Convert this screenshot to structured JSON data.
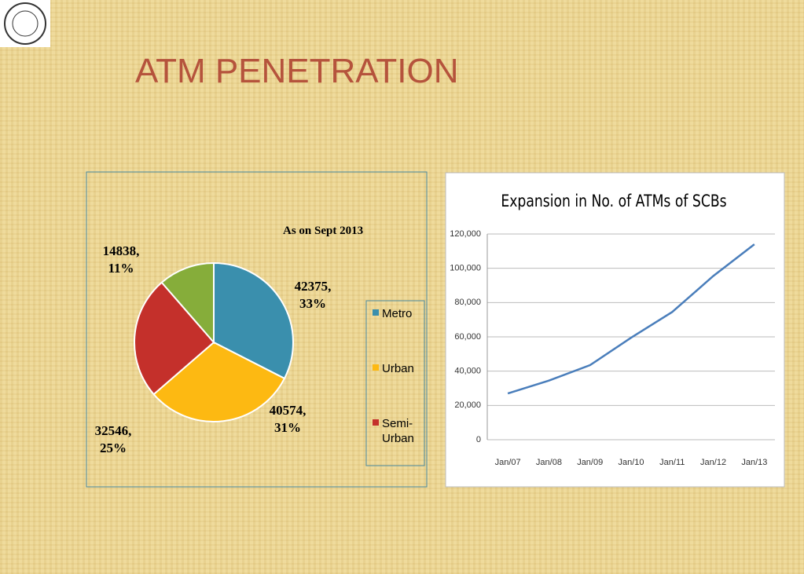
{
  "slide_title": "ATM PENETRATION",
  "chart_data": [
    {
      "type": "pie",
      "subtitle": "As on Sept 2013",
      "categories": [
        "Metro",
        "Urban",
        "Semi-Urban",
        null
      ],
      "values": [
        42375,
        40574,
        32546,
        14838
      ],
      "value_labels": [
        "42375, 33%",
        "40574, 31%",
        "32546, 25%",
        "14838, 11%"
      ],
      "colors": [
        "#3a8fad",
        "#fdb912",
        "#c4302b",
        "#86ad3a"
      ],
      "legend": "right"
    },
    {
      "type": "line",
      "title": "Expansion in No. of ATMs of SCBs",
      "categories": [
        "Jan/07",
        "Jan/08",
        "Jan/09",
        "Jan/10",
        "Jan/11",
        "Jan/12",
        "Jan/13"
      ],
      "values": [
        27000,
        34500,
        43500,
        59500,
        74500,
        95500,
        114000
      ],
      "color": "#4a7ebb",
      "ylim": [
        0,
        120000
      ],
      "yticks": [
        0,
        {
          "value": 20000,
          "label": "20,000"
        },
        {
          "value": 40000,
          "label": "40,000"
        },
        {
          "value": 60000,
          "label": "60,000"
        },
        {
          "value": 80000,
          "label": "80,000"
        },
        {
          "value": 100000,
          "label": "100,000"
        },
        {
          "value": 120000,
          "label": "120,000"
        }
      ],
      "grid": true
    }
  ]
}
